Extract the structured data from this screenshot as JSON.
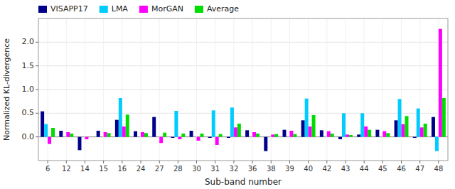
{
  "chart_data": {
    "type": "bar",
    "xlabel": "Sub-band number",
    "ylabel": "Normalized KL-divergence",
    "categories": [
      "6",
      "12",
      "14",
      "15",
      "16",
      "24",
      "27",
      "28",
      "30",
      "31",
      "32",
      "36",
      "38",
      "39",
      "40",
      "42",
      "43",
      "44",
      "45",
      "46",
      "47",
      "48"
    ],
    "series": [
      {
        "name": "VISAPP17",
        "color": "#00008B",
        "values": [
          0.54,
          0.13,
          -0.28,
          0.13,
          0.36,
          0.12,
          0.42,
          -0.02,
          0.13,
          -0.02,
          -0.02,
          0.14,
          -0.3,
          0.15,
          0.35,
          0.14,
          -0.05,
          0.05,
          0.15,
          0.35,
          -0.02,
          0.42
        ]
      },
      {
        "name": "LMA",
        "color": "#00CCFF",
        "values": [
          0.27,
          0.0,
          0.0,
          0.0,
          0.82,
          0.0,
          0.0,
          0.55,
          0.0,
          0.56,
          0.62,
          0.0,
          0.0,
          0.0,
          0.81,
          0.0,
          0.5,
          0.5,
          0.0,
          0.8,
          0.6,
          -0.3
        ]
      },
      {
        "name": "MorGAN",
        "color": "#FF00FF",
        "values": [
          -0.15,
          0.1,
          -0.05,
          0.1,
          0.22,
          0.1,
          -0.13,
          -0.05,
          -0.08,
          -0.17,
          0.2,
          0.1,
          0.05,
          0.13,
          0.22,
          0.12,
          0.05,
          0.22,
          0.12,
          0.27,
          0.2,
          2.28
        ]
      },
      {
        "name": "Average",
        "color": "#00DD00",
        "values": [
          0.19,
          0.07,
          0.0,
          0.08,
          0.47,
          0.08,
          0.09,
          0.07,
          0.07,
          0.06,
          0.28,
          0.07,
          0.06,
          0.06,
          0.46,
          0.07,
          0.04,
          0.15,
          0.08,
          0.44,
          0.28,
          0.82
        ]
      }
    ],
    "ylim": [
      -0.5,
      2.5
    ],
    "yticks": [
      {
        "value": 0.0,
        "label": "0.0"
      },
      0.5,
      {
        "value": 1.0,
        "label": "1.0"
      },
      1.5,
      {
        "value": 2.0,
        "label": "2.0"
      }
    ],
    "grid": true,
    "legend": "upper left"
  }
}
